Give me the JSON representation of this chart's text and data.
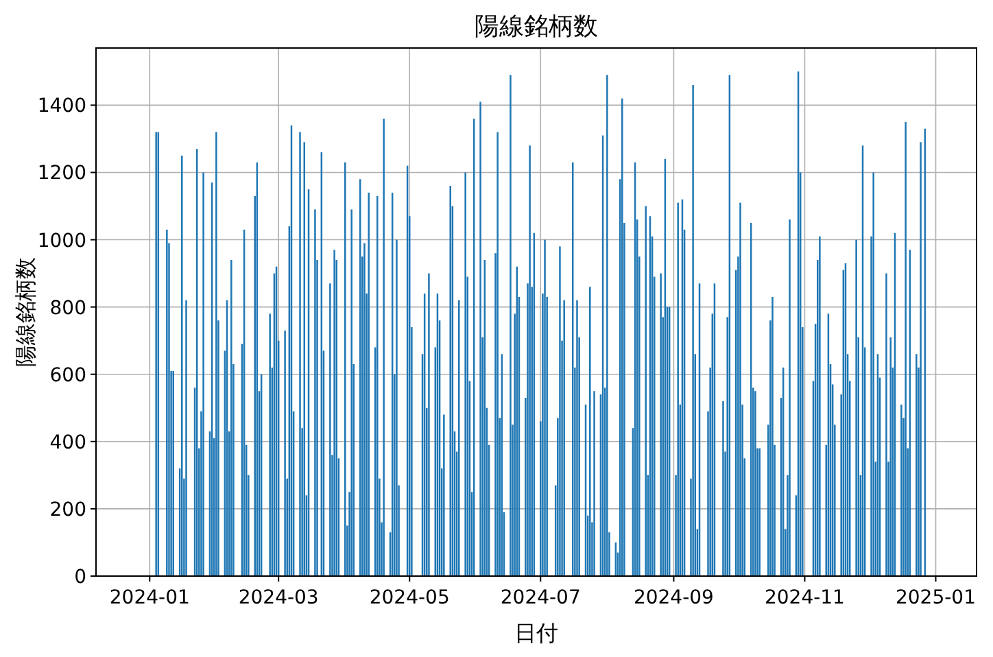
{
  "chart_data": {
    "type": "bar",
    "title": "陽線銘柄数",
    "xlabel": "日付",
    "ylabel": "陽線銘柄数",
    "color": "#1f77b4",
    "grid": true,
    "xlim": [
      "2023-12-07",
      "2025-01-20"
    ],
    "ylim": [
      0,
      1570
    ],
    "xticks": [
      "2024-01",
      "2024-03",
      "2024-05",
      "2024-07",
      "2024-09",
      "2024-11",
      "2025-01"
    ],
    "yticks": [
      0,
      200,
      400,
      600,
      800,
      1000,
      1200,
      1400
    ],
    "x": [
      "2024-01-04",
      "2024-01-05",
      "2024-01-09",
      "2024-01-10",
      "2024-01-11",
      "2024-01-12",
      "2024-01-15",
      "2024-01-16",
      "2024-01-17",
      "2024-01-18",
      "2024-01-22",
      "2024-01-23",
      "2024-01-24",
      "2024-01-25",
      "2024-01-26",
      "2024-01-29",
      "2024-01-30",
      "2024-01-31",
      "2024-02-01",
      "2024-02-02",
      "2024-02-05",
      "2024-02-06",
      "2024-02-07",
      "2024-02-08",
      "2024-02-09",
      "2024-02-13",
      "2024-02-14",
      "2024-02-15",
      "2024-02-16",
      "2024-02-19",
      "2024-02-20",
      "2024-02-21",
      "2024-02-22",
      "2024-02-26",
      "2024-02-27",
      "2024-02-28",
      "2024-02-29",
      "2024-03-01",
      "2024-03-04",
      "2024-03-05",
      "2024-03-06",
      "2024-03-07",
      "2024-03-08",
      "2024-03-11",
      "2024-03-12",
      "2024-03-13",
      "2024-03-14",
      "2024-03-15",
      "2024-03-18",
      "2024-03-19",
      "2024-03-21",
      "2024-03-22",
      "2024-03-25",
      "2024-03-26",
      "2024-03-27",
      "2024-03-28",
      "2024-03-29",
      "2024-04-01",
      "2024-04-02",
      "2024-04-03",
      "2024-04-04",
      "2024-04-05",
      "2024-04-08",
      "2024-04-09",
      "2024-04-10",
      "2024-04-11",
      "2024-04-12",
      "2024-04-15",
      "2024-04-16",
      "2024-04-17",
      "2024-04-18",
      "2024-04-19",
      "2024-04-22",
      "2024-04-23",
      "2024-04-24",
      "2024-04-25",
      "2024-04-26",
      "2024-04-30",
      "2024-05-01",
      "2024-05-02",
      "2024-05-07",
      "2024-05-08",
      "2024-05-09",
      "2024-05-10",
      "2024-05-13",
      "2024-05-14",
      "2024-05-15",
      "2024-05-16",
      "2024-05-17",
      "2024-05-20",
      "2024-05-21",
      "2024-05-22",
      "2024-05-23",
      "2024-05-24",
      "2024-05-27",
      "2024-05-28",
      "2024-05-29",
      "2024-05-30",
      "2024-05-31",
      "2024-06-03",
      "2024-06-04",
      "2024-06-05",
      "2024-06-06",
      "2024-06-07",
      "2024-06-10",
      "2024-06-11",
      "2024-06-12",
      "2024-06-13",
      "2024-06-14",
      "2024-06-17",
      "2024-06-18",
      "2024-06-19",
      "2024-06-20",
      "2024-06-21",
      "2024-06-24",
      "2024-06-25",
      "2024-06-26",
      "2024-06-27",
      "2024-06-28",
      "2024-07-01",
      "2024-07-02",
      "2024-07-03",
      "2024-07-04",
      "2024-07-08",
      "2024-07-09",
      "2024-07-10",
      "2024-07-11",
      "2024-07-12",
      "2024-07-16",
      "2024-07-17",
      "2024-07-18",
      "2024-07-19",
      "2024-07-22",
      "2024-07-23",
      "2024-07-24",
      "2024-07-25",
      "2024-07-26",
      "2024-07-29",
      "2024-07-30",
      "2024-07-31",
      "2024-08-01",
      "2024-08-02",
      "2024-08-05",
      "2024-08-06",
      "2024-08-07",
      "2024-08-08",
      "2024-08-09",
      "2024-08-13",
      "2024-08-14",
      "2024-08-15",
      "2024-08-16",
      "2024-08-19",
      "2024-08-20",
      "2024-08-21",
      "2024-08-22",
      "2024-08-23",
      "2024-08-26",
      "2024-08-27",
      "2024-08-28",
      "2024-08-29",
      "2024-08-30",
      "2024-09-02",
      "2024-09-03",
      "2024-09-04",
      "2024-09-05",
      "2024-09-06",
      "2024-09-09",
      "2024-09-10",
      "2024-09-11",
      "2024-09-12",
      "2024-09-13",
      "2024-09-17",
      "2024-09-18",
      "2024-09-19",
      "2024-09-20",
      "2024-09-24",
      "2024-09-25",
      "2024-09-26",
      "2024-09-27",
      "2024-09-30",
      "2024-10-01",
      "2024-10-02",
      "2024-10-03",
      "2024-10-04",
      "2024-10-07",
      "2024-10-08",
      "2024-10-09",
      "2024-10-10",
      "2024-10-11",
      "2024-10-15",
      "2024-10-16",
      "2024-10-17",
      "2024-10-18",
      "2024-10-21",
      "2024-10-22",
      "2024-10-23",
      "2024-10-24",
      "2024-10-25",
      "2024-10-28",
      "2024-10-29",
      "2024-10-30",
      "2024-10-31",
      "2024-11-05",
      "2024-11-06",
      "2024-11-07",
      "2024-11-08",
      "2024-11-11",
      "2024-11-12",
      "2024-11-13",
      "2024-11-14",
      "2024-11-15",
      "2024-11-18",
      "2024-11-19",
      "2024-11-20",
      "2024-11-21",
      "2024-11-22",
      "2024-11-25",
      "2024-11-26",
      "2024-11-27",
      "2024-11-28",
      "2024-11-29",
      "2024-12-02",
      "2024-12-03",
      "2024-12-04",
      "2024-12-05",
      "2024-12-06",
      "2024-12-09",
      "2024-12-10",
      "2024-12-11",
      "2024-12-12",
      "2024-12-13",
      "2024-12-16",
      "2024-12-17",
      "2024-12-18",
      "2024-12-19",
      "2024-12-20",
      "2024-12-23",
      "2024-12-24",
      "2024-12-25",
      "2024-12-27"
    ],
    "values": [
      1320,
      1320,
      1030,
      990,
      610,
      610,
      320,
      1250,
      290,
      820,
      560,
      1270,
      380,
      490,
      1200,
      430,
      1170,
      410,
      1320,
      760,
      670,
      820,
      430,
      940,
      630,
      690,
      1030,
      390,
      300,
      1130,
      1230,
      550,
      600,
      780,
      620,
      900,
      920,
      700,
      730,
      290,
      1040,
      1340,
      490,
      1320,
      440,
      1290,
      240,
      1150,
      1090,
      940,
      1260,
      670,
      870,
      360,
      970,
      940,
      350,
      1230,
      150,
      250,
      1090,
      630,
      1180,
      950,
      990,
      840,
      1140,
      680,
      1130,
      290,
      160,
      1360,
      130,
      1140,
      600,
      1000,
      270,
      1220,
      1070,
      740,
      660,
      840,
      500,
      900,
      680,
      840,
      760,
      320,
      480,
      1160,
      1100,
      430,
      370,
      820,
      1200,
      890,
      580,
      250,
      1360,
      1410,
      710,
      940,
      500,
      390,
      960,
      1320,
      470,
      660,
      190,
      1490,
      450,
      780,
      920,
      830,
      530,
      870,
      1280,
      860,
      1020,
      460,
      840,
      1000,
      830,
      270,
      470,
      980,
      700,
      820,
      1230,
      620,
      820,
      710,
      510,
      180,
      860,
      160,
      550,
      540,
      1310,
      560,
      1490,
      130,
      100,
      70,
      1180,
      1420,
      1050,
      440,
      1230,
      1060,
      950,
      1100,
      300,
      1070,
      1010,
      890,
      900,
      770,
      1240,
      800,
      800,
      300,
      1110,
      510,
      1120,
      1030,
      290,
      1460,
      660,
      140,
      870,
      490,
      620,
      780,
      870,
      520,
      370,
      770,
      1490,
      910,
      950,
      1110,
      510,
      350,
      1050,
      560,
      550,
      380,
      380,
      450,
      760,
      830,
      390,
      530,
      620,
      140,
      300,
      1060,
      240,
      1500,
      1200,
      740,
      580,
      750,
      940,
      1010,
      390,
      780,
      630,
      570,
      450,
      540,
      910,
      930,
      660,
      580,
      1000,
      710,
      300,
      1280,
      680,
      1010,
      1200,
      340,
      660,
      590,
      900,
      340,
      710,
      620,
      1020,
      510,
      470,
      1350,
      380,
      970,
      660,
      620,
      1290,
      1330
    ]
  }
}
